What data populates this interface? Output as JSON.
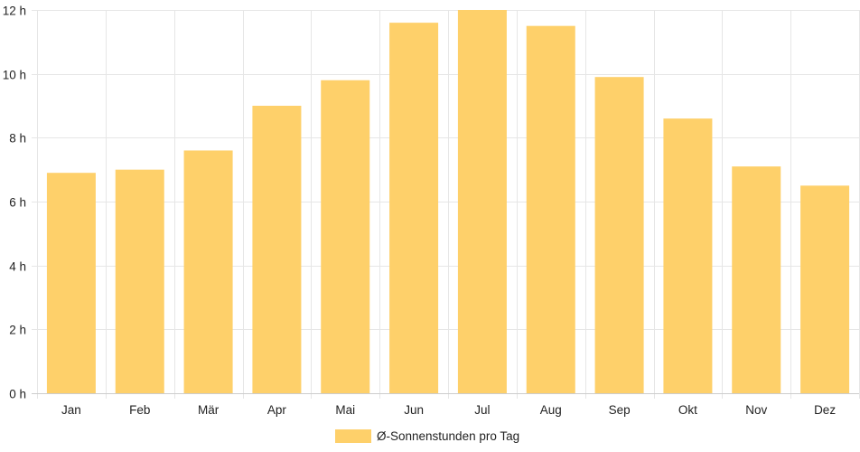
{
  "chart_data": {
    "type": "bar",
    "categories": [
      "Jan",
      "Feb",
      "Mär",
      "Apr",
      "Mai",
      "Jun",
      "Jul",
      "Aug",
      "Sep",
      "Okt",
      "Nov",
      "Dez"
    ],
    "series": [
      {
        "name": "Ø-Sonnenstunden pro Tag",
        "values": [
          6.9,
          7.0,
          7.6,
          9.0,
          9.8,
          11.6,
          12.0,
          11.5,
          9.9,
          8.6,
          7.1,
          6.5
        ],
        "color": "#fed06a"
      }
    ],
    "ylim": [
      0,
      12
    ],
    "yticks": [
      {
        "value": 0,
        "label": "0 h"
      },
      {
        "value": 2,
        "label": "2 h"
      },
      {
        "value": 4,
        "label": "4 h"
      },
      {
        "value": 6,
        "label": "6 h"
      },
      {
        "value": 8,
        "label": "8 h"
      },
      {
        "value": 10,
        "label": "10 h"
      },
      {
        "value": 12,
        "label": "12 h"
      }
    ],
    "grid": true,
    "legend_position": "bottom",
    "grid_color": "#e6e6e6",
    "axis_color": "#cccccc"
  }
}
